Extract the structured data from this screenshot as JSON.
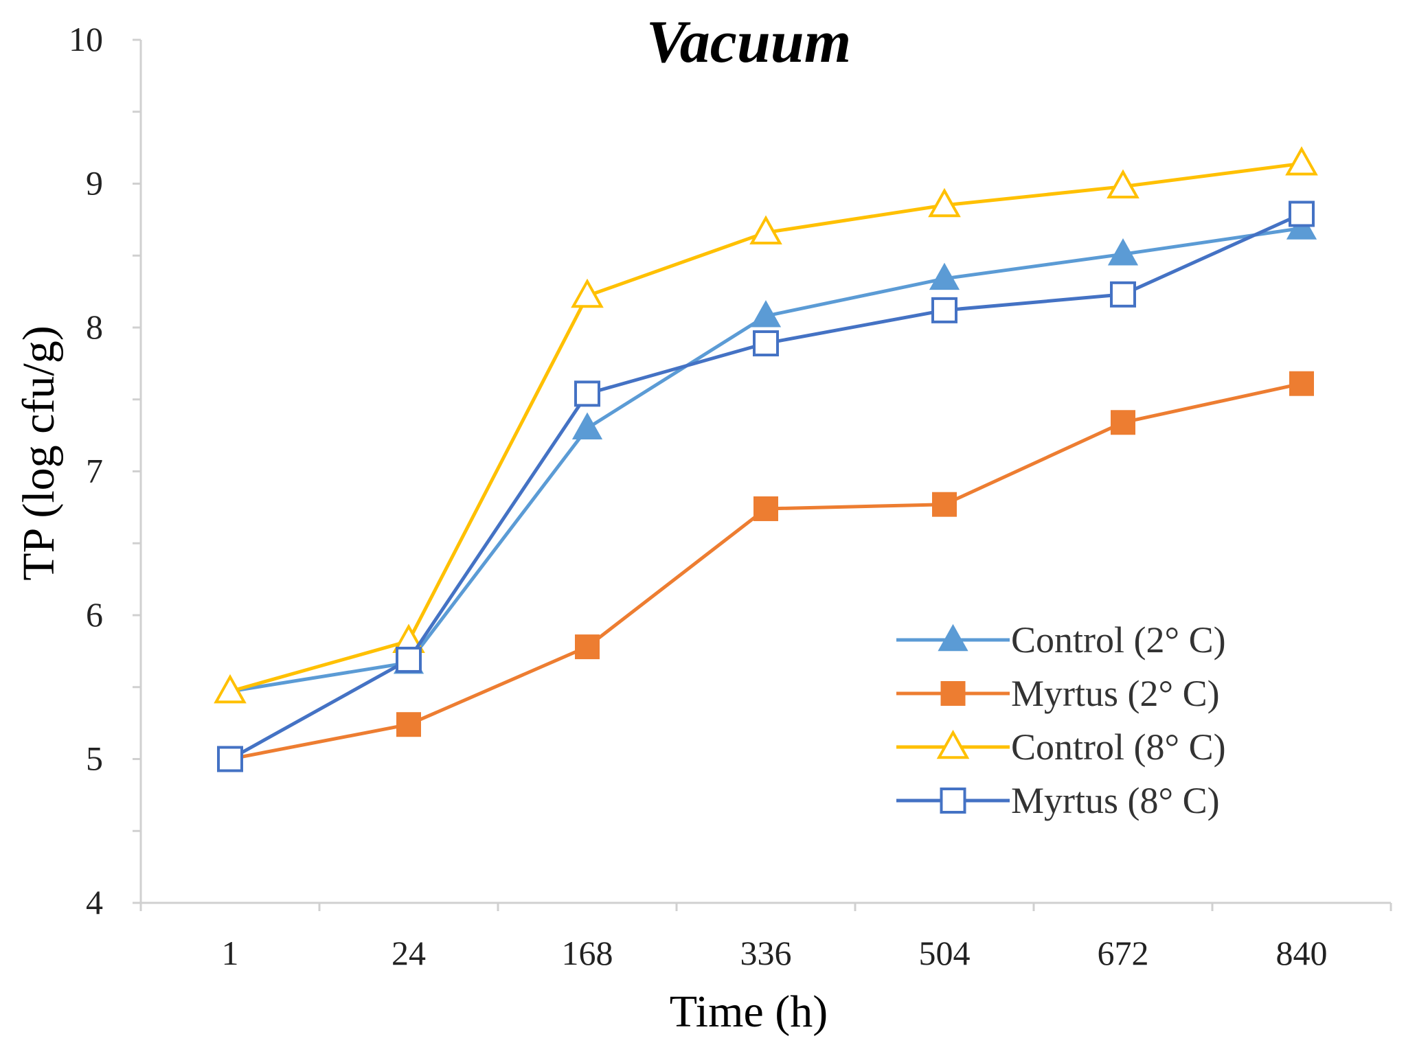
{
  "chart_data": {
    "type": "line",
    "title": "Vacuum",
    "xlabel": "Time (h)",
    "ylabel": "TP (log cfu/g)",
    "categories": [
      "1",
      "24",
      "168",
      "336",
      "504",
      "672",
      "840"
    ],
    "ylim": [
      4,
      10
    ],
    "yticks": [
      4,
      5,
      6,
      7,
      8,
      9,
      10
    ],
    "grid": false,
    "legend_position": "right",
    "series": [
      {
        "name": "Control (2° C)",
        "marker": "triangle-filled",
        "color": "#5B9BD5",
        "values": [
          5.47,
          5.67,
          7.3,
          8.08,
          8.34,
          8.51,
          8.69
        ]
      },
      {
        "name": "Myrtus (2° C)",
        "marker": "square-filled",
        "color": "#ED7D31",
        "values": [
          5.0,
          5.24,
          5.78,
          6.74,
          6.77,
          7.34,
          7.61
        ]
      },
      {
        "name": "Control (8° C)",
        "marker": "triangle-open",
        "color": "#FFC000",
        "values": [
          5.47,
          5.82,
          8.22,
          8.66,
          8.85,
          8.98,
          9.14
        ]
      },
      {
        "name": "Myrtus (8° C)",
        "marker": "square-open",
        "color": "#4472C4",
        "values": [
          5.0,
          5.69,
          7.54,
          7.89,
          8.12,
          8.23,
          8.79
        ]
      }
    ]
  }
}
